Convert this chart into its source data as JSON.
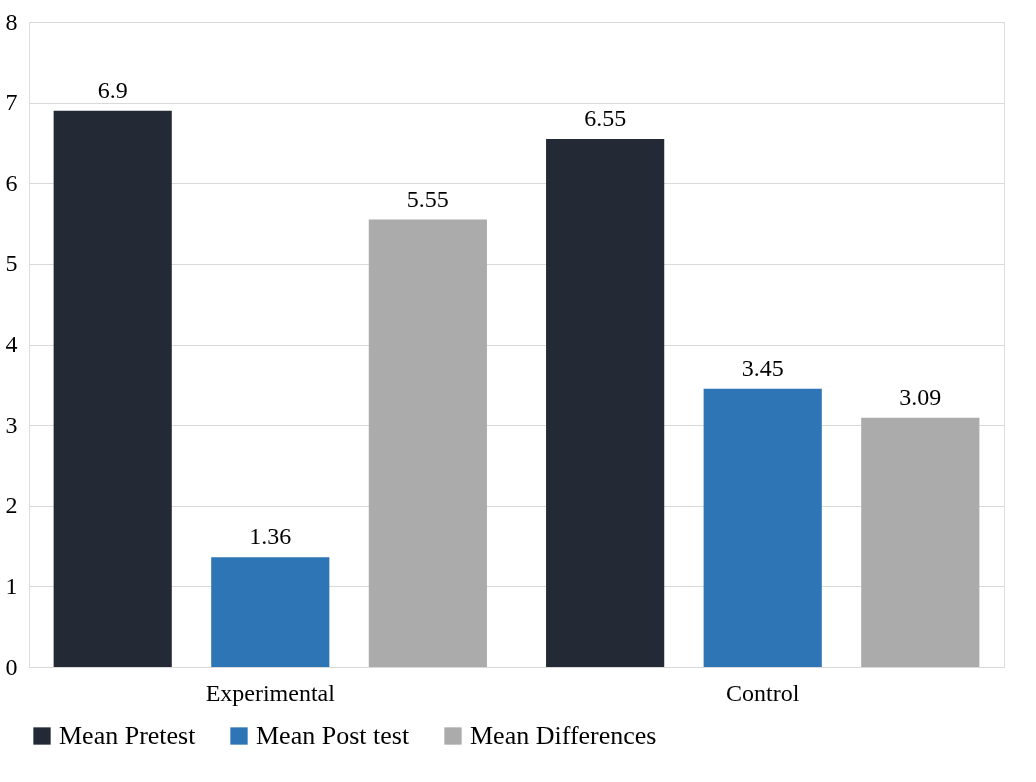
{
  "chart_data": {
    "type": "bar",
    "categories": [
      "Experimental",
      "Control"
    ],
    "series": [
      {
        "name": "Mean Pretest",
        "color": "#232a35",
        "values": [
          6.9,
          6.55
        ]
      },
      {
        "name": "Mean Post test",
        "color": "#2e75b6",
        "values": [
          1.36,
          3.45
        ]
      },
      {
        "name": "Mean Differences",
        "color": "#ababab",
        "values": [
          5.55,
          3.09
        ]
      }
    ],
    "ylim": [
      0,
      8
    ],
    "yticks": [
      0,
      1,
      2,
      3,
      4,
      5,
      6,
      7,
      8
    ],
    "grid": "y",
    "legend": "bottom",
    "data_labels": true
  }
}
